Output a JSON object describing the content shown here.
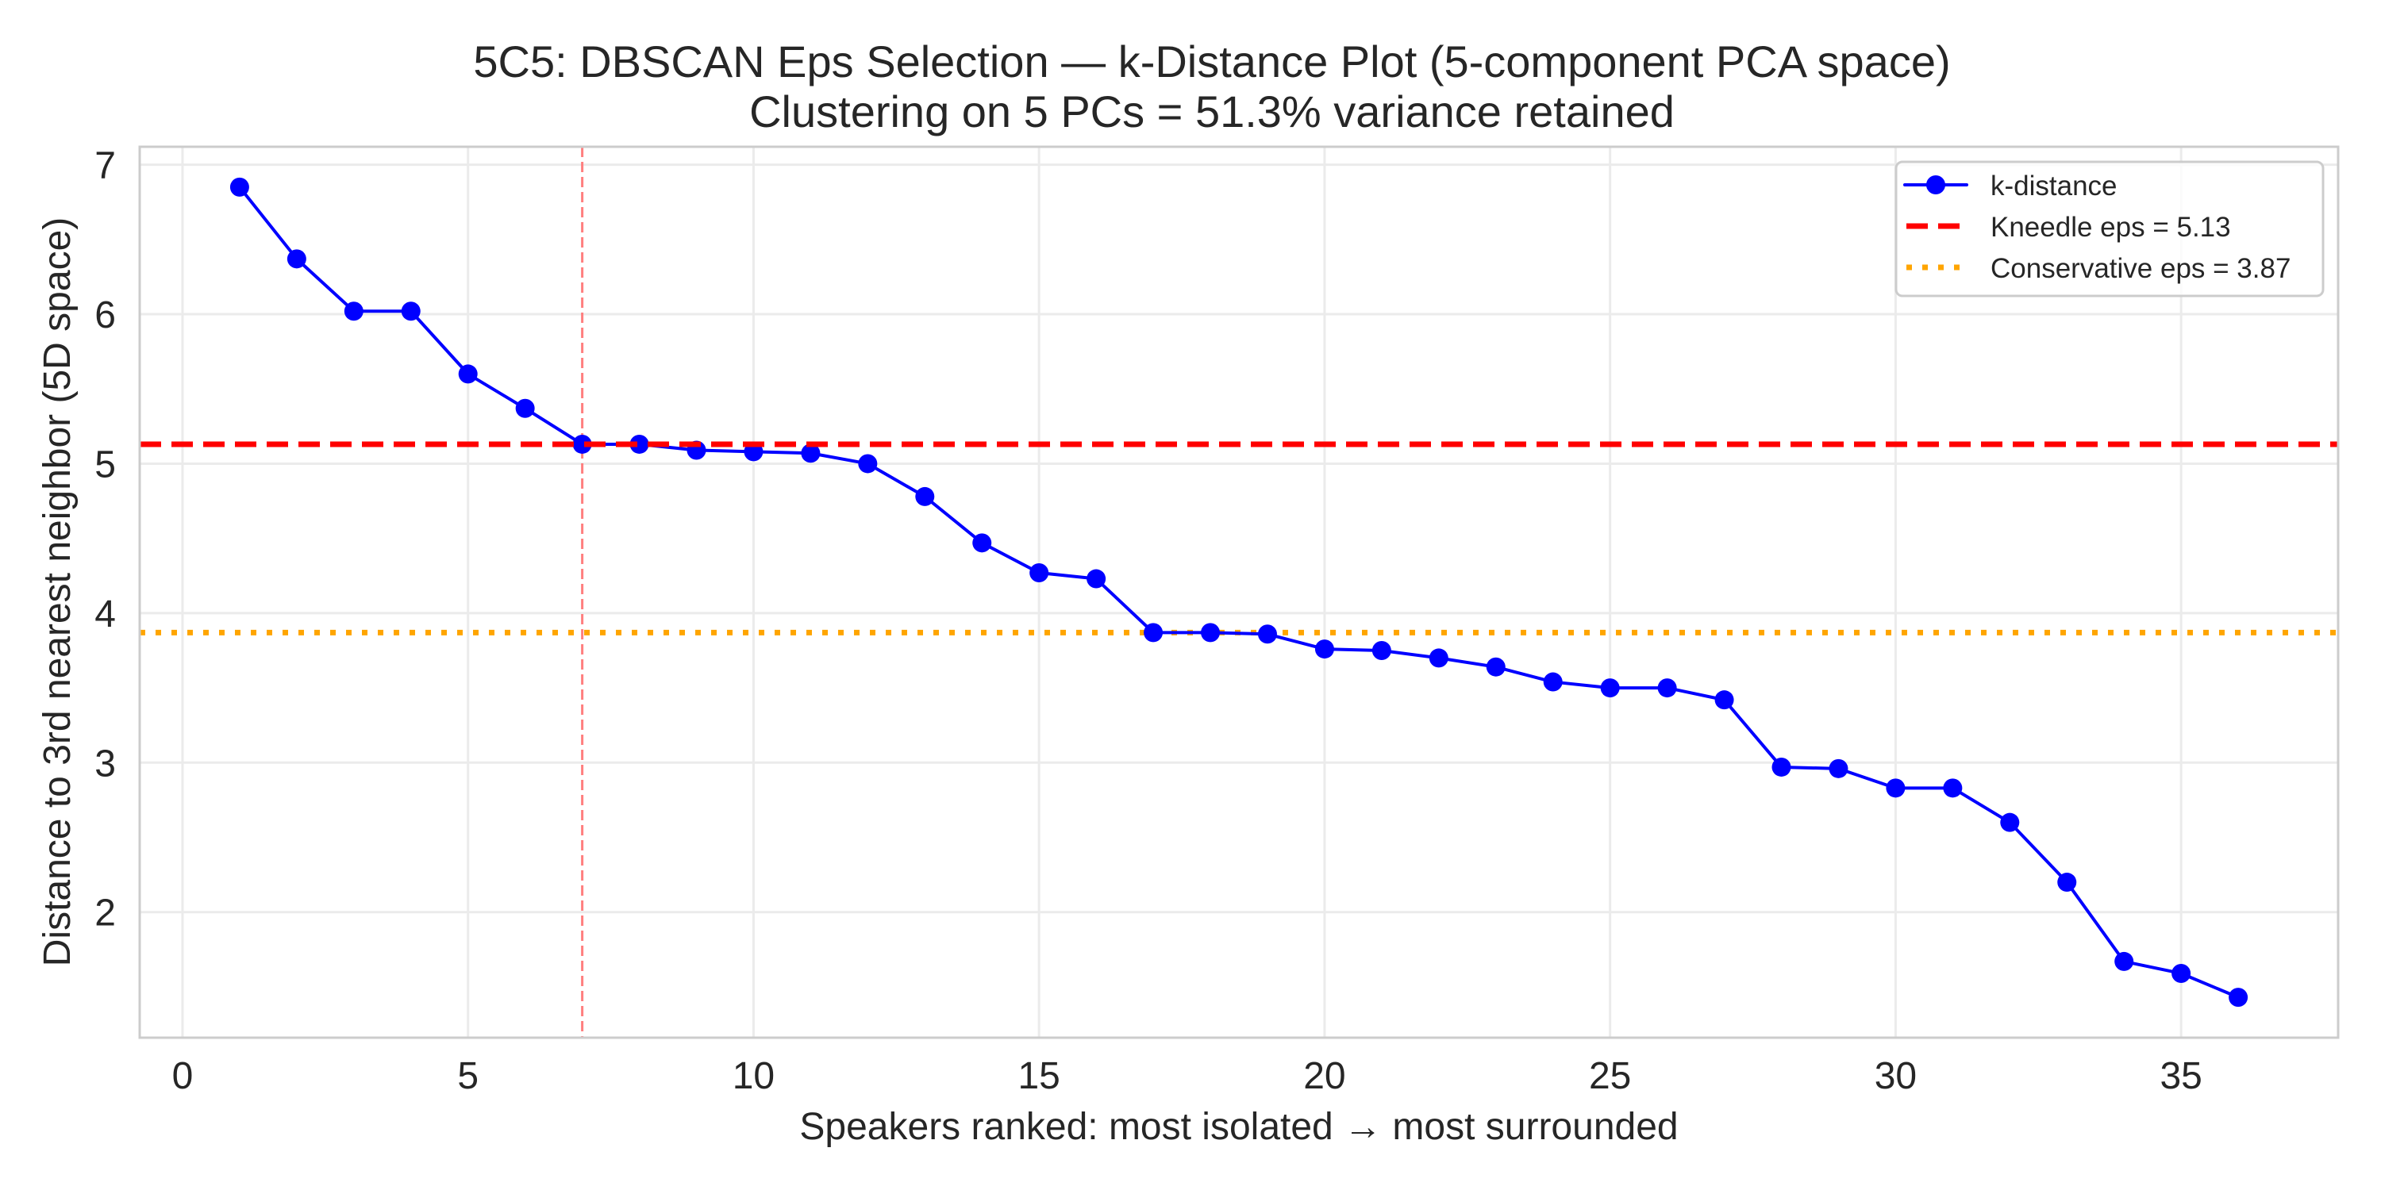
{
  "chart_data": {
    "type": "line",
    "title": "5C5: DBSCAN Eps Selection — k-Distance Plot (5-component PCA space)",
    "subtitle": "Clustering on 5 PCs = 51.3% variance retained",
    "xlabel": "Speakers ranked: most isolated → most surrounded",
    "ylabel": "Distance to 3rd nearest neighbor (5D space)",
    "xlim": [
      -0.75,
      37.75
    ],
    "ylim": [
      1.16,
      7.12
    ],
    "xticks": [
      0,
      5,
      10,
      15,
      20,
      25,
      30,
      35
    ],
    "xtick_labels": [
      "0",
      "5",
      "10",
      "15",
      "20",
      "25",
      "30",
      "35"
    ],
    "yticks": [
      2,
      3,
      4,
      5,
      6,
      7
    ],
    "ytick_labels": [
      "2",
      "3",
      "4",
      "5",
      "6",
      "7"
    ],
    "grid": true,
    "legend_position": "top-right",
    "x": [
      1,
      2,
      3,
      4,
      5,
      6,
      7,
      8,
      9,
      10,
      11,
      12,
      13,
      14,
      15,
      16,
      17,
      18,
      19,
      20,
      21,
      22,
      23,
      24,
      25,
      26,
      27,
      28,
      29,
      30,
      31,
      32,
      33,
      34,
      35,
      36
    ],
    "series": [
      {
        "name": "k-distance",
        "color": "#0000ff",
        "style": "solid-with-markers",
        "values": [
          6.85,
          6.37,
          6.02,
          6.02,
          5.6,
          5.37,
          5.13,
          5.13,
          5.09,
          5.08,
          5.07,
          5.0,
          4.78,
          4.47,
          4.27,
          4.23,
          3.87,
          3.87,
          3.86,
          3.76,
          3.75,
          3.7,
          3.64,
          3.54,
          3.5,
          3.5,
          3.42,
          2.97,
          2.96,
          2.83,
          2.83,
          2.6,
          2.2,
          1.67,
          1.59,
          1.43
        ]
      }
    ],
    "reference_lines": [
      {
        "name": "Kneedle eps = 5.13",
        "orientation": "horizontal",
        "value": 5.13,
        "color": "#ff0000",
        "style": "dashed"
      },
      {
        "name": "Conservative eps = 3.87",
        "orientation": "horizontal",
        "value": 3.87,
        "color": "#ffa500",
        "style": "dotted"
      },
      {
        "name": "knee-index",
        "orientation": "vertical",
        "value": 7,
        "color": "#ff7f7f",
        "style": "dashed"
      }
    ],
    "legend": [
      "k-distance",
      "Kneedle eps = 5.13",
      "Conservative eps = 3.87"
    ]
  }
}
